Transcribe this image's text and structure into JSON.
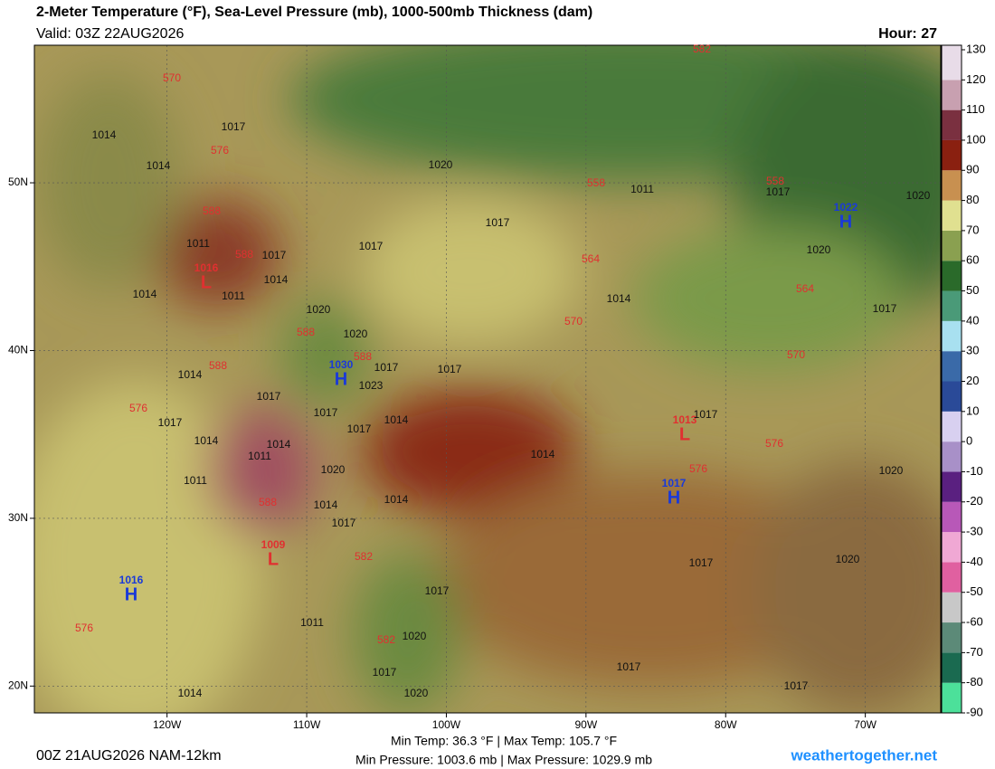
{
  "header": {
    "title": "2-Meter Temperature (°F), Sea-Level Pressure (mb), 1000-500mb Thickness (dam)",
    "valid": "Valid: 03Z 22AUG2026",
    "hour": "Hour: 27"
  },
  "map": {
    "xlim": [
      -129.5,
      -64.6
    ],
    "ylim": [
      18.4,
      58.2
    ],
    "xticks": [
      {
        "value": -120,
        "label": "120W"
      },
      {
        "value": -110,
        "label": "110W"
      },
      {
        "value": -100,
        "label": "100W"
      },
      {
        "value": -90,
        "label": "90W"
      },
      {
        "value": -80,
        "label": "80W"
      },
      {
        "value": -70,
        "label": "70W"
      }
    ],
    "yticks": [
      {
        "value": 50,
        "label": "50N"
      },
      {
        "value": 40,
        "label": "40N"
      },
      {
        "value": 30,
        "label": "30N"
      },
      {
        "value": 20,
        "label": "20N"
      }
    ],
    "centers": [
      {
        "kind": "H",
        "value": "1016"
      },
      {
        "kind": "H",
        "value": "1030"
      },
      {
        "kind": "H",
        "value": "1017"
      },
      {
        "kind": "H",
        "value": "1022"
      },
      {
        "kind": "L",
        "value": "1016"
      },
      {
        "kind": "L",
        "value": "1009"
      },
      {
        "kind": "L",
        "value": "1013"
      }
    ],
    "pressure_labels": [
      "1014",
      "1014",
      "1017",
      "1020",
      "1011",
      "1017",
      "1020",
      "1017",
      "1017",
      "1017",
      "1011",
      "1014",
      "1011",
      "1014",
      "1020",
      "1020",
      "1017",
      "1023",
      "1017",
      "1014",
      "1020",
      "1017",
      "1014",
      "1017",
      "1017",
      "1014",
      "1017",
      "1017",
      "1014",
      "1011",
      "1014",
      "1020",
      "1014",
      "1014",
      "1017",
      "1014",
      "1017",
      "1020",
      "1020",
      "1017",
      "1017",
      "1011",
      "1020",
      "1017",
      "1020",
      "1017",
      "1017",
      "1014",
      "1011"
    ],
    "thickness_labels": [
      "570",
      "582",
      "576",
      "588",
      "588",
      "558",
      "558",
      "564",
      "564",
      "570",
      "570",
      "588",
      "588",
      "588",
      "576",
      "576",
      "576",
      "588",
      "582",
      "582",
      "576"
    ]
  },
  "colorbar": {
    "lim": [
      -90,
      131.5
    ],
    "ticks": [
      130,
      120,
      110,
      100,
      90,
      80,
      70,
      60,
      50,
      40,
      30,
      20,
      10,
      0,
      -10,
      -20,
      -30,
      -40,
      -50,
      -60,
      -70,
      -80,
      -90
    ],
    "colors": [
      "#4ce09a",
      "#1a6a50",
      "#5c8a78",
      "#c8c8c8",
      "#e060a0",
      "#f0a8d4",
      "#b858b8",
      "#5a2080",
      "#a890c8",
      "#d8d0f0",
      "#2a4a98",
      "#3a6aa8",
      "#a8e0f0",
      "#4a9a78",
      "#2a6a2a",
      "#8aa050",
      "#e0e090",
      "#c89050",
      "#8a2010",
      "#7a3040",
      "#c8a0b0",
      "#e8dce8"
    ]
  },
  "footer": {
    "run": "00Z 21AUG2026 NAM-12km",
    "temps": "Min Temp:  36.3 °F | Max Temp: 105.7 °F",
    "pressures": "Min Pressure: 1003.6 mb | Max Pressure: 1029.9 mb",
    "site": "weathertogether.net"
  }
}
